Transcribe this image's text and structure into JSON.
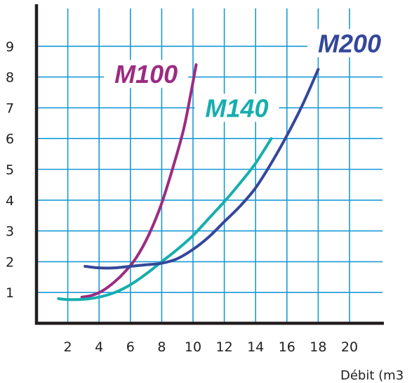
{
  "chart_data": {
    "type": "line",
    "title": "",
    "xlabel": "Débit (m3",
    "ylabel": "",
    "xlim": [
      0,
      22
    ],
    "ylim": [
      0,
      10
    ],
    "x_ticks": [
      "2",
      "4",
      "6",
      "8",
      "10",
      "12",
      "14",
      "16",
      "18",
      "20"
    ],
    "y_ticks": [
      "1",
      "2",
      "3",
      "4",
      "5",
      "6",
      "7",
      "8",
      "9"
    ],
    "grid": true,
    "grid_color": "#1a9ad6",
    "series": [
      {
        "name": "M100",
        "color": "#9b2b83",
        "points": [
          [
            2.9,
            0.85
          ],
          [
            3.5,
            0.9
          ],
          [
            4.2,
            1.05
          ],
          [
            5.0,
            1.35
          ],
          [
            5.7,
            1.7
          ],
          [
            6.4,
            2.15
          ],
          [
            7.2,
            2.9
          ],
          [
            8.0,
            3.9
          ],
          [
            8.8,
            5.2
          ],
          [
            9.4,
            6.3
          ],
          [
            9.8,
            7.3
          ],
          [
            10.2,
            8.4
          ]
        ]
      },
      {
        "name": "M140",
        "color": "#16aeae",
        "points": [
          [
            1.4,
            0.8
          ],
          [
            2.0,
            0.77
          ],
          [
            3.0,
            0.78
          ],
          [
            4.0,
            0.85
          ],
          [
            5.0,
            1.0
          ],
          [
            6.0,
            1.25
          ],
          [
            7.0,
            1.6
          ],
          [
            8.0,
            2.0
          ],
          [
            9.0,
            2.4
          ],
          [
            10.0,
            2.85
          ],
          [
            11.0,
            3.4
          ],
          [
            12.0,
            3.95
          ],
          [
            13.0,
            4.55
          ],
          [
            14.0,
            5.2
          ],
          [
            15.0,
            6.0
          ]
        ]
      },
      {
        "name": "M200",
        "color": "#34479b",
        "points": [
          [
            3.1,
            1.85
          ],
          [
            4.0,
            1.8
          ],
          [
            5.0,
            1.8
          ],
          [
            6.0,
            1.85
          ],
          [
            7.0,
            1.9
          ],
          [
            8.0,
            1.95
          ],
          [
            9.0,
            2.1
          ],
          [
            10.0,
            2.4
          ],
          [
            11.0,
            2.8
          ],
          [
            12.0,
            3.3
          ],
          [
            13.0,
            3.8
          ],
          [
            14.0,
            4.4
          ],
          [
            15.0,
            5.2
          ],
          [
            16.0,
            6.1
          ],
          [
            17.0,
            7.1
          ],
          [
            18.0,
            8.25
          ]
        ]
      }
    ],
    "labels": [
      {
        "series": "M100",
        "text": "M100",
        "color": "#9b2b83",
        "x": 7.0,
        "y": 8.1
      },
      {
        "series": "M140",
        "text": "M140",
        "color": "#16aeae",
        "x": 12.8,
        "y": 7.0
      },
      {
        "series": "M200",
        "text": "M200",
        "color": "#34479b",
        "x": 20.0,
        "y": 9.1
      }
    ]
  }
}
